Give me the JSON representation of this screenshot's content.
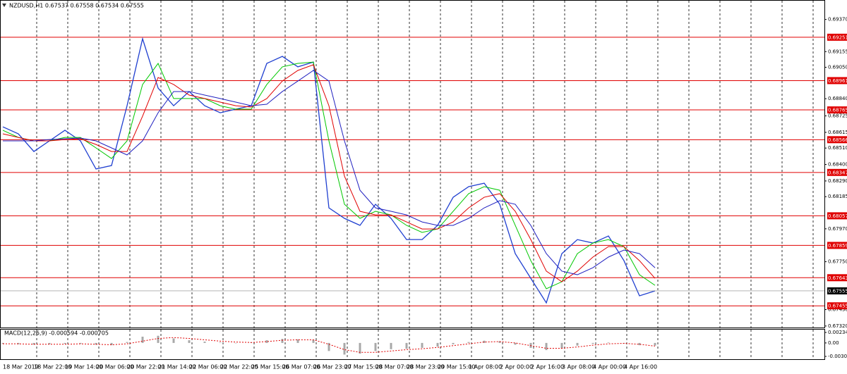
{
  "chart_data": [
    {
      "type": "line",
      "title": "NZDUSD,H1 0.67537 0.67558 0.67534 0.67555",
      "categories": [
        "18 Mar 2019",
        null,
        "18 Mar 22:00",
        null,
        "19 Mar 14:00",
        null,
        "20 Mar 06:00",
        null,
        "20 Mar 22:00",
        null,
        "21 Mar 14:00",
        null,
        "22 Mar 06:00",
        null,
        "22 Mar 22:00",
        null,
        "25 Mar 15:00",
        null,
        "26 Mar 07:00",
        null,
        "26 Mar 23:00",
        null,
        "27 Mar 15:00",
        null,
        "28 Mar 07:00",
        null,
        "28 Mar 23:00",
        null,
        "29 Mar 15:00",
        null,
        "1 Apr 08:00",
        null,
        "2 Apr 00:00",
        null,
        "2 Apr 16:00",
        null,
        "3 Apr 08:00",
        null,
        "4 Apr 00:00",
        null,
        "4 Apr 16:00",
        null,
        null
      ],
      "series": [
        {
          "color": "#1f3fd0",
          "values": [
            0.68652,
            0.68605,
            0.68487,
            0.68558,
            0.68629,
            0.68558,
            0.6837,
            0.68393,
            0.68793,
            0.69241,
            0.68911,
            0.68793,
            0.68888,
            0.68793,
            0.68746,
            0.6877,
            0.68793,
            0.69076,
            0.69123,
            0.69053,
            0.69085,
            0.6811,
            0.6804,
            0.67993,
            0.68134,
            0.6804,
            0.67898,
            0.67898,
            0.67993,
            0.68181,
            0.68252,
            0.68275,
            0.68134,
            0.67804,
            0.67639,
            0.67475,
            0.67804,
            0.67898,
            0.67875,
            0.67922,
            0.67757,
            0.67522,
            0.67555
          ]
        },
        {
          "color": "#00c800",
          "values": [
            0.68629,
            0.68581,
            0.68558,
            0.68558,
            0.68581,
            0.68581,
            0.68511,
            0.6844,
            0.68558,
            0.68935,
            0.69076,
            0.68841,
            0.68841,
            0.68841,
            0.68793,
            0.6877,
            0.6877,
            0.68935,
            0.69053,
            0.69076,
            0.69085,
            0.68558,
            0.68134,
            0.6804,
            0.68087,
            0.68063,
            0.67993,
            0.67946,
            0.67969,
            0.68087,
            0.68205,
            0.68252,
            0.68228,
            0.67993,
            0.67757,
            0.67569,
            0.67616,
            0.67804,
            0.67875,
            0.67898,
            0.67851,
            0.67663,
            0.67592
          ]
        },
        {
          "color": "#e00000",
          "values": [
            0.68605,
            0.68581,
            0.68558,
            0.68558,
            0.68567,
            0.68572,
            0.68534,
            0.68487,
            0.68487,
            0.68723,
            0.68982,
            0.68935,
            0.68864,
            0.68841,
            0.68817,
            0.68793,
            0.68784,
            0.68841,
            0.68958,
            0.69029,
            0.69067,
            0.68793,
            0.68322,
            0.68087,
            0.68063,
            0.68063,
            0.68016,
            0.67969,
            0.67969,
            0.68016,
            0.6811,
            0.68181,
            0.68205,
            0.68087,
            0.67898,
            0.67687,
            0.67616,
            0.67687,
            0.67781,
            0.67851,
            0.67851,
            0.67757,
            0.67639
          ]
        },
        {
          "color": "#2020c0",
          "values": [
            0.68558,
            0.68558,
            0.68558,
            0.68567,
            0.68572,
            0.68577,
            0.68558,
            0.68511,
            0.68464,
            0.68558,
            0.68746,
            0.68888,
            0.68888,
            0.68864,
            0.68841,
            0.68817,
            0.68793,
            0.68803,
            0.68888,
            0.68958,
            0.69029,
            0.68958,
            0.68558,
            0.68228,
            0.6811,
            0.68087,
            0.68063,
            0.68016,
            0.67993,
            0.67993,
            0.6804,
            0.6811,
            0.68158,
            0.68134,
            0.67993,
            0.67804,
            0.67687,
            0.67663,
            0.6771,
            0.67781,
            0.67828,
            0.67804,
            0.6771
          ]
        }
      ],
      "ylim": [
        0.6731,
        0.695
      ],
      "yticks": [
        {
          "value": 0.6937,
          "label": "0.69370"
        },
        {
          "value": 0.69155,
          "label": "0.69155"
        },
        {
          "value": 0.6905,
          "label": "0.69050"
        },
        {
          "value": 0.6884,
          "label": "0.68840"
        },
        {
          "value": 0.68725,
          "label": "0.68725"
        },
        {
          "value": 0.68615,
          "label": "0.68615"
        },
        {
          "value": 0.6851,
          "label": "0.68510"
        },
        {
          "value": 0.684,
          "label": "0.68400"
        },
        {
          "value": 0.6829,
          "label": "0.68290"
        },
        {
          "value": 0.68185,
          "label": "0.68185"
        },
        {
          "value": 0.6797,
          "label": "0.67970"
        },
        {
          "value": 0.6775,
          "label": "0.67750"
        },
        {
          "value": 0.6743,
          "label": "0.67430"
        },
        {
          "value": 0.6732,
          "label": "0.67320"
        }
      ],
      "levels": [
        0.69251,
        0.68961,
        0.68765,
        0.68566,
        0.68347,
        0.68057,
        0.67859,
        0.67643,
        0.67455
      ],
      "level_color": "#e00000",
      "last_price": 0.67555,
      "grid": true
    },
    {
      "type": "bar",
      "title": "MACD(12,26,9) -0.000594 -0.000705",
      "values": [
        -0.0002,
        -0.0003,
        -0.0004,
        -0.0003,
        -0.0002,
        -0.0002,
        -0.0004,
        -0.0005,
        0.0002,
        0.0014,
        0.0016,
        0.001,
        0.0006,
        0.0003,
        0.0001,
        0.0,
        0.0001,
        0.0006,
        0.0009,
        0.0008,
        0.0007,
        -0.0018,
        -0.0026,
        -0.0024,
        -0.0018,
        -0.0014,
        -0.0013,
        -0.0011,
        -0.0008,
        -0.0003,
        0.0002,
        0.0005,
        0.0004,
        -0.0004,
        -0.0011,
        -0.0016,
        -0.0012,
        -0.0006,
        -0.0002,
        0.0001,
        -0.0001,
        -0.0005,
        -0.000594
      ],
      "color": "#a8a8a8",
      "series": [
        {
          "color": "#e00000",
          "values": [
            -0.0002,
            -0.0002,
            -0.0003,
            -0.0003,
            -0.0003,
            -0.0002,
            -0.0003,
            -0.0004,
            -0.0002,
            0.0004,
            0.001,
            0.0012,
            0.001,
            0.0007,
            0.0004,
            0.0002,
            0.0001,
            0.0003,
            0.0006,
            0.0007,
            0.0007,
            -0.0003,
            -0.0015,
            -0.0021,
            -0.0021,
            -0.0018,
            -0.0015,
            -0.0013,
            -0.001,
            -0.0006,
            -0.0002,
            0.0002,
            0.0003,
            0.0,
            -0.0006,
            -0.0012,
            -0.0012,
            -0.0009,
            -0.0005,
            -0.0002,
            -0.0001,
            -0.0003,
            -0.000705
          ]
        }
      ],
      "ylim": [
        -0.003007,
        0.002344
      ],
      "yticks": [
        0.002344,
        {
          "value": 0,
          "label": "0.00"
        },
        -0.003007
      ]
    }
  ]
}
